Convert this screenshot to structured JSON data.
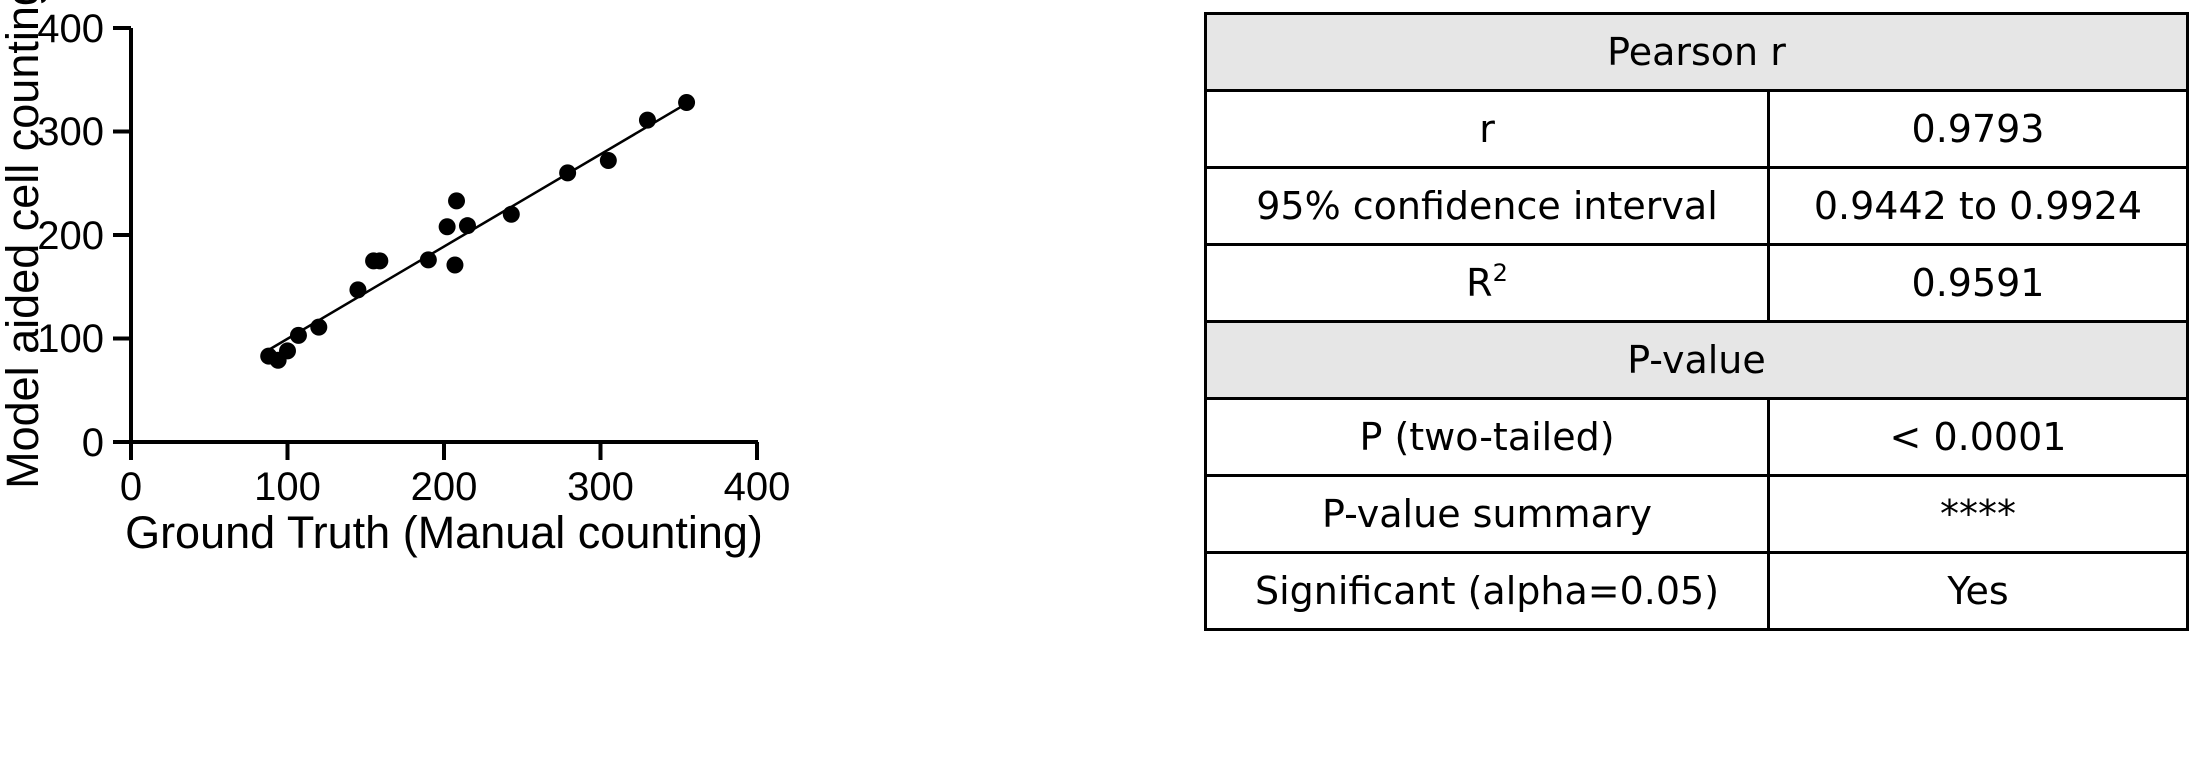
{
  "chart_data": {
    "type": "scatter",
    "xlabel": "Ground Truth (Manual counting)",
    "ylabel": "Model aided cell counting",
    "xlim": [
      0,
      400
    ],
    "ylim": [
      0,
      400
    ],
    "xticks": [
      "0",
      "100",
      "200",
      "300",
      "400"
    ],
    "yticks": [
      "0",
      "100",
      "200",
      "300",
      "400"
    ],
    "grid": false,
    "points": [
      {
        "x": 88,
        "y": 83
      },
      {
        "x": 94,
        "y": 79
      },
      {
        "x": 100,
        "y": 88
      },
      {
        "x": 107,
        "y": 103
      },
      {
        "x": 120,
        "y": 111
      },
      {
        "x": 145,
        "y": 147
      },
      {
        "x": 155,
        "y": 175
      },
      {
        "x": 159,
        "y": 175
      },
      {
        "x": 190,
        "y": 176
      },
      {
        "x": 202,
        "y": 208
      },
      {
        "x": 207,
        "y": 171
      },
      {
        "x": 208,
        "y": 233
      },
      {
        "x": 215,
        "y": 209
      },
      {
        "x": 243,
        "y": 220
      },
      {
        "x": 279,
        "y": 260
      },
      {
        "x": 305,
        "y": 272
      },
      {
        "x": 330,
        "y": 311
      },
      {
        "x": 355,
        "y": 328
      }
    ],
    "fit_line": {
      "x": [
        88,
        355
      ],
      "y": [
        89,
        327
      ]
    }
  },
  "stats_table": {
    "section1_title": "Pearson r",
    "r_label": "r",
    "r_value": "0.9793",
    "ci_label": "95% confidence interval",
    "ci_value": "0.9442 to 0.9924",
    "r2_label": "R",
    "r2_label_sup": "2",
    "r2_value": "0.9591",
    "section2_title": "P-value",
    "p_label": "P (two-tailed)",
    "p_value": "< 0.0001",
    "summary_label": "P-value summary",
    "summary_value": "****",
    "significant_label": "Significant (alpha=0.05)",
    "significant_value": "Yes"
  }
}
